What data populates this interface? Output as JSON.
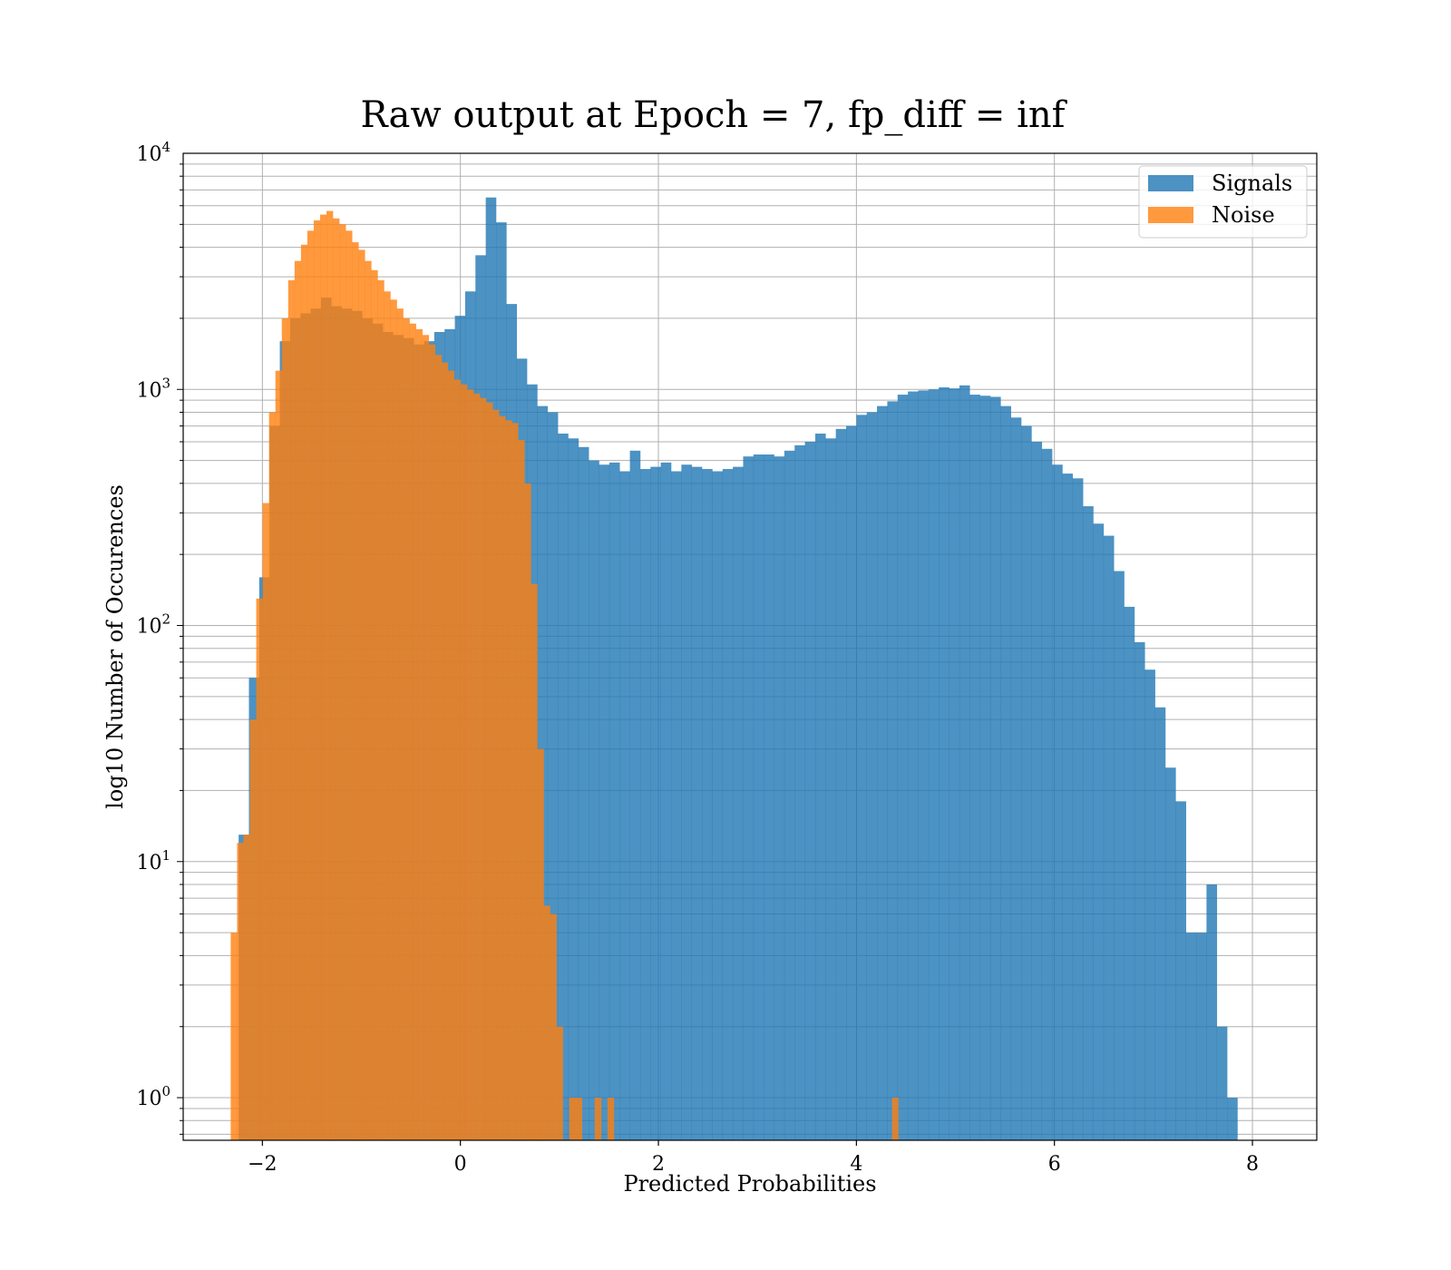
{
  "chart_data": {
    "type": "bar",
    "title": "Raw output at Epoch = 7, fp_diff = inf",
    "xlabel": "Predicted Probabilities",
    "ylabel": "log10 Number of Occurences",
    "yscale": "log",
    "xlim": [
      -2.8,
      8.65
    ],
    "ylim": [
      0.66,
      10000
    ],
    "grid": true,
    "legend_position": "upper right",
    "x_ticks": [
      -2,
      0,
      2,
      4,
      6,
      8
    ],
    "x_tick_labels": [
      "−2",
      "0",
      "2",
      "4",
      "6",
      "8"
    ],
    "y_ticks": [
      {
        "value": 1,
        "base": "10",
        "exp": "0"
      },
      {
        "value": 10,
        "base": "10",
        "exp": "1"
      },
      {
        "value": 100,
        "base": "10",
        "exp": "2"
      },
      {
        "value": 1000,
        "base": "10",
        "exp": "3"
      },
      {
        "value": 10000,
        "base": "10",
        "exp": "4"
      }
    ],
    "bin_width": 0.104,
    "colors": {
      "Signals": "#1f77b4",
      "Noise": "#ff7f0e"
    },
    "series": [
      {
        "name": "Signals",
        "color": "#1f77b4",
        "opacity": 0.8,
        "x_start": -2.24,
        "counts": [
          13,
          60,
          160,
          700,
          1600,
          2000,
          2100,
          2200,
          2450,
          2250,
          2200,
          2150,
          2000,
          1900,
          1750,
          1700,
          1650,
          1550,
          1600,
          1750,
          1800,
          2050,
          2600,
          3700,
          6500,
          5100,
          2300,
          1350,
          1050,
          850,
          800,
          650,
          620,
          570,
          500,
          480,
          490,
          450,
          550,
          460,
          470,
          490,
          450,
          480,
          470,
          460,
          450,
          460,
          470,
          520,
          530,
          530,
          520,
          550,
          580,
          600,
          650,
          620,
          680,
          700,
          780,
          800,
          850,
          890,
          950,
          980,
          990,
          1000,
          1020,
          1010,
          1040,
          950,
          940,
          930,
          850,
          760,
          700,
          600,
          560,
          480,
          440,
          420,
          320,
          270,
          240,
          170,
          120,
          85,
          65,
          45,
          25,
          18,
          5,
          5,
          8,
          2,
          1
        ]
      },
      {
        "name": "Noise",
        "color": "#ff7f0e",
        "opacity": 0.8,
        "x_start": -2.32,
        "x_step": 0.0645,
        "counts": [
          5,
          12,
          13,
          40,
          130,
          330,
          800,
          1200,
          2000,
          2900,
          3500,
          4100,
          4700,
          5200,
          5500,
          5700,
          5300,
          5000,
          4700,
          4200,
          3900,
          3500,
          3200,
          2900,
          2600,
          2400,
          2200,
          2000,
          1900,
          1800,
          1700,
          1550,
          1400,
          1300,
          1200,
          1100,
          1050,
          1000,
          960,
          920,
          880,
          820,
          770,
          740,
          720,
          610,
          400,
          150,
          30,
          6.5,
          6,
          2,
          0,
          1,
          1,
          0,
          0,
          1,
          0,
          1
        ]
      }
    ],
    "noise_outliers": [
      {
        "x": 4.36,
        "count": 1
      }
    ]
  }
}
